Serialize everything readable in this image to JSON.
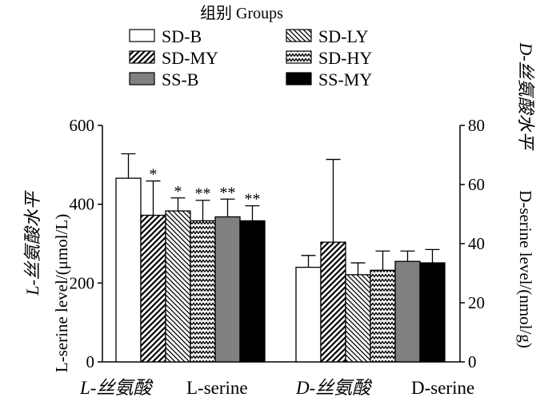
{
  "chart_data": {
    "type": "bar",
    "legend": {
      "title": "组别 Groups",
      "placement": "top-center"
    },
    "series": [
      {
        "name": "SD-B",
        "pattern": "white"
      },
      {
        "name": "SD-LY",
        "pattern": "diag-right-fine"
      },
      {
        "name": "SD-MY",
        "pattern": "diag-left"
      },
      {
        "name": "SD-HY",
        "pattern": "zigzag"
      },
      {
        "name": "SS-B",
        "pattern": "gray"
      },
      {
        "name": "SS-MY",
        "pattern": "black"
      }
    ],
    "colors": {
      "gray": "#808080",
      "black": "#000000",
      "white": "#ffffff"
    },
    "groups": [
      {
        "name_cn": "L-丝氨酸",
        "name_en": "L-serine",
        "axis": "left",
        "values": [
          466,
          383,
          372,
          358,
          368,
          358
        ],
        "errors": [
          62,
          33,
          87,
          52,
          45,
          38
        ],
        "significance": [
          "",
          "*",
          "*",
          "**",
          "**",
          "**"
        ]
      },
      {
        "name_cn": "D-丝氨酸",
        "name_en": "D-serine",
        "axis": "right",
        "values": [
          32,
          29.5,
          40.5,
          31,
          34,
          33.5
        ],
        "errors": [
          4,
          4,
          28,
          6.5,
          3.5,
          4.5
        ],
        "significance": [
          "",
          "",
          "",
          "",
          "",
          ""
        ]
      }
    ],
    "y_left": {
      "label_cn": "L-丝氨酸水平",
      "label_en": "L-serine level/(μmol/L)",
      "ylim": [
        0,
        600
      ],
      "ticks": [
        "0",
        "200",
        "400",
        "600"
      ]
    },
    "y_right": {
      "label_cn": "D-丝氨酸水平",
      "label_en": "D-serine level/(nmol/g)",
      "ylim": [
        0,
        80
      ],
      "ticks": [
        "0",
        "20",
        "40",
        "60",
        "80"
      ]
    },
    "grid": false
  }
}
